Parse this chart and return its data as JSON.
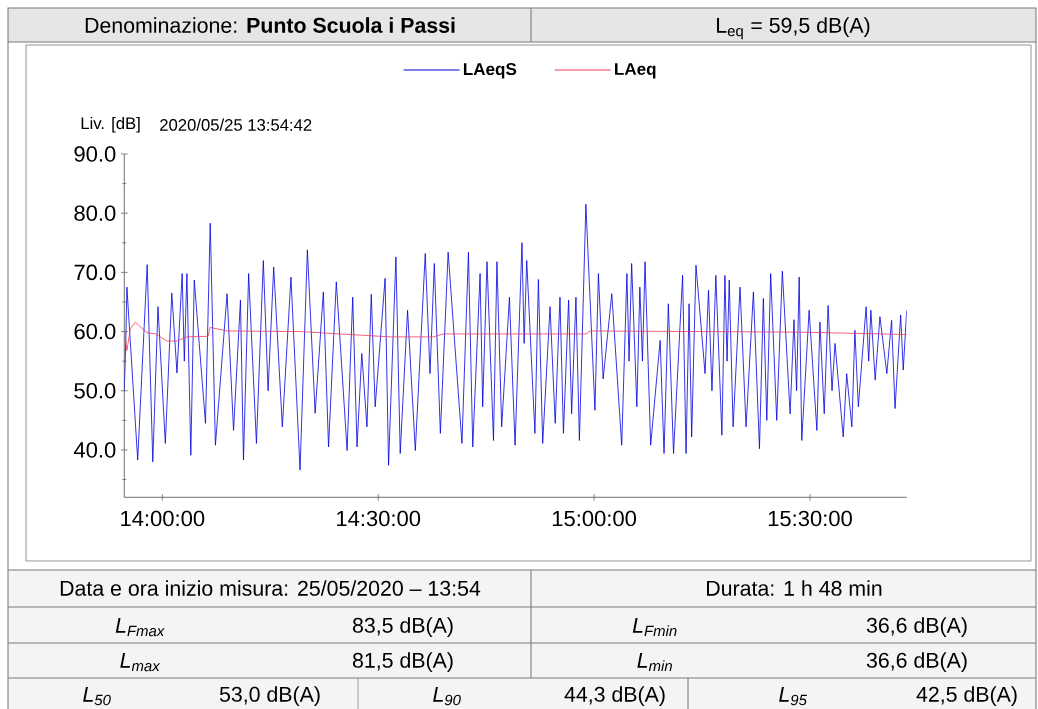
{
  "chart_data": {
    "type": "line",
    "title": "Denominazione: **Punto Scuola i Passi**",
    "subtitle": "L$_{eq}$ = 59,5 dB(A)",
    "ylabel": "Liv. [dB]",
    "legend": "top",
    "xlim": [
      13.912,
      15.724
    ],
    "ylim": [
      32,
      90
    ],
    "xticks": [
      {
        "value": 14,
        "label": "14:00:00"
      },
      {
        "value": 14.5,
        "label": "14:30:00"
      },
      {
        "value": 15,
        "label": "15:00:00"
      },
      {
        "value": 15.5,
        "label": "15:30:00"
      }
    ],
    "yticks": [
      {
        "value": 35,
        "label": null
      },
      {
        "value": 40,
        "label": "40.0"
      },
      {
        "value": 45,
        "label": null
      },
      {
        "value": 50,
        "label": "50.0"
      },
      {
        "value": 55,
        "label": null
      },
      {
        "value": 60,
        "label": "60.0"
      },
      {
        "value": 65,
        "label": null
      },
      {
        "value": 70,
        "label": "70.0"
      },
      {
        "value": 75,
        "label": null
      },
      {
        "value": 80,
        "label": "80.0"
      },
      {
        "value": 85,
        "label": null
      },
      {
        "value": 90,
        "label": "90.0"
      }
    ],
    "series": [
      {
        "name": "LAeqS",
        "color": "#0000dd",
        "x": [
          13.912,
          13.916,
          13.918,
          13.943,
          13.965,
          13.978,
          13.99,
          14.007,
          14.022,
          14.034,
          14.046,
          14.051,
          14.057,
          14.066,
          14.074,
          14.1,
          14.111,
          14.123,
          14.15,
          14.165,
          14.181,
          14.188,
          14.2,
          14.218,
          14.234,
          14.245,
          14.258,
          14.278,
          14.298,
          14.319,
          14.336,
          14.354,
          14.373,
          14.385,
          14.403,
          14.428,
          14.441,
          14.451,
          14.462,
          14.474,
          14.484,
          14.493,
          14.516,
          14.524,
          14.541,
          14.551,
          14.568,
          14.586,
          14.609,
          14.62,
          14.63,
          14.644,
          14.662,
          14.694,
          14.709,
          14.719,
          14.736,
          14.742,
          14.752,
          14.767,
          14.775,
          14.786,
          14.804,
          14.817,
          14.833,
          14.838,
          14.844,
          14.863,
          14.871,
          14.881,
          14.898,
          14.91,
          14.921,
          14.929,
          14.941,
          14.948,
          14.958,
          14.966,
          14.981,
          15.002,
          15.01,
          15.021,
          15.041,
          15.064,
          15.076,
          15.081,
          15.087,
          15.099,
          15.106,
          15.112,
          15.118,
          15.131,
          15.153,
          15.162,
          15.172,
          15.184,
          15.205,
          15.213,
          15.22,
          15.226,
          15.236,
          15.257,
          15.265,
          15.273,
          15.282,
          15.296,
          15.303,
          15.308,
          15.313,
          15.322,
          15.338,
          15.352,
          15.369,
          15.383,
          15.392,
          15.4,
          15.409,
          15.423,
          15.436,
          15.454,
          15.463,
          15.469,
          15.475,
          15.481,
          15.498,
          15.516,
          15.523,
          15.533,
          15.542,
          15.551,
          15.558,
          15.577,
          15.585,
          15.597,
          15.604,
          15.612,
          15.63,
          15.636,
          15.641,
          15.651,
          15.662,
          15.678,
          15.689,
          15.697,
          15.71,
          15.716,
          15.724
        ],
        "values": [
          50.0,
          60.0,
          67.5,
          38.3,
          71.3,
          38.0,
          64.2,
          41.1,
          66.5,
          53.0,
          69.8,
          55.0,
          69.8,
          39.1,
          68.7,
          44.5,
          78.3,
          40.8,
          66.4,
          43.3,
          65.3,
          38.3,
          69.8,
          41.1,
          72.0,
          50.0,
          70.9,
          43.9,
          69.2,
          36.6,
          73.8,
          46.2,
          66.7,
          40.5,
          68.4,
          39.9,
          65.8,
          40.5,
          56.3,
          43.9,
          66.3,
          47.3,
          69.0,
          37.4,
          72.6,
          39.4,
          63.6,
          39.9,
          73.2,
          52.9,
          71.5,
          42.8,
          73.4,
          41.1,
          73.4,
          40.5,
          69.8,
          47.3,
          71.8,
          41.6,
          71.8,
          43.9,
          65.8,
          40.8,
          75.0,
          58.0,
          72.0,
          42.8,
          68.8,
          41.1,
          64.2,
          44.5,
          65.8,
          42.8,
          65.3,
          46.1,
          65.8,
          41.6,
          81.5,
          46.7,
          69.8,
          52.0,
          66.4,
          40.8,
          69.8,
          55.0,
          71.5,
          47.3,
          67.5,
          55.0,
          71.8,
          40.8,
          58.5,
          39.4,
          64.7,
          39.4,
          69.5,
          39.4,
          64.7,
          42.2,
          71.2,
          52.9,
          67.0,
          50.0,
          69.5,
          42.5,
          69.5,
          55.0,
          68.7,
          43.9,
          67.5,
          43.9,
          66.7,
          40.2,
          65.6,
          45.0,
          69.8,
          45.0,
          70.2,
          46.1,
          62.0,
          50.0,
          69.2,
          41.6,
          63.6,
          43.3,
          61.6,
          46.1,
          64.4,
          50.0,
          58.0,
          42.2,
          52.9,
          43.9,
          60.2,
          47.3,
          64.2,
          55.0,
          63.6,
          51.8,
          62.5,
          52.9,
          61.9,
          47.0,
          62.8,
          53.5,
          63.6
        ]
      },
      {
        "name": "LAeq",
        "color": "#ee3b5b",
        "x": [
          13.913,
          13.918,
          13.926,
          13.938,
          13.949,
          13.965,
          13.984,
          14.011,
          14.034,
          14.057,
          14.106,
          14.111,
          14.15,
          14.319,
          14.528,
          14.628,
          14.651,
          14.981,
          14.991,
          15.245,
          15.477,
          15.724
        ],
        "values": [
          60.0,
          56.8,
          60.5,
          61.6,
          60.8,
          59.8,
          59.6,
          58.4,
          58.4,
          59.1,
          59.2,
          60.7,
          60.1,
          60.0,
          59.1,
          59.1,
          59.6,
          59.6,
          60.1,
          60.0,
          59.9,
          59.5
        ]
      }
    ],
    "annotations": [
      "2020/05/25 13:54:42",
      "Data e ora inizio misura: 25/05/2020 – 13:54",
      "Durata: 1 h 48 min",
      "L$_{Fmax}$",
      "83,5 dB(A)",
      "L$_{Fmin}$",
      "36,6 dB(A)",
      "L$_{max}$",
      "81,5 dB(A)",
      "L$_{min}$",
      "36,6 dB(A)",
      "L$_{50}$",
      "53,0 dB(A)",
      "L$_{90}$",
      "44,3 dB(A)",
      "L$_{95}$",
      "42,5 dB(A)"
    ]
  }
}
